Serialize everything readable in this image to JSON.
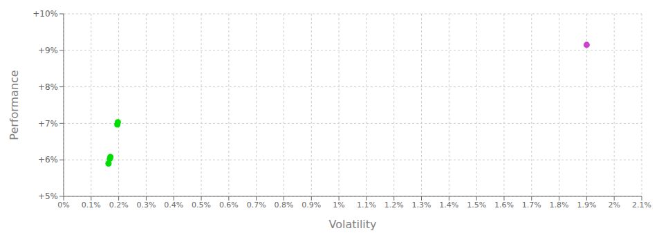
{
  "chart_data": {
    "type": "scatter",
    "xlabel": "Volatility",
    "ylabel": "Performance",
    "xlim": [
      0.0,
      0.021
    ],
    "ylim": [
      0.05,
      0.1
    ],
    "xticks": [
      {
        "value": 0.0,
        "label": "0%"
      },
      {
        "value": 0.001,
        "label": "0.1%"
      },
      {
        "value": 0.002,
        "label": "0.2%"
      },
      {
        "value": 0.003,
        "label": "0.3%"
      },
      {
        "value": 0.004,
        "label": "0.4%"
      },
      {
        "value": 0.005,
        "label": "0.5%"
      },
      {
        "value": 0.006,
        "label": "0.6%"
      },
      {
        "value": 0.007,
        "label": "0.7%"
      },
      {
        "value": 0.008,
        "label": "0.8%"
      },
      {
        "value": 0.009,
        "label": "0.9%"
      },
      {
        "value": 0.01,
        "label": "1%"
      },
      {
        "value": 0.011,
        "label": "1.1%"
      },
      {
        "value": 0.012,
        "label": "1.2%"
      },
      {
        "value": 0.013,
        "label": "1.3%"
      },
      {
        "value": 0.014,
        "label": "1.4%"
      },
      {
        "value": 0.015,
        "label": "1.5%"
      },
      {
        "value": 0.016,
        "label": "1.6%"
      },
      {
        "value": 0.017,
        "label": "1.7%"
      },
      {
        "value": 0.018,
        "label": "1.8%"
      },
      {
        "value": 0.019,
        "label": "1.9%"
      },
      {
        "value": 0.02,
        "label": "2%"
      },
      {
        "value": 0.021,
        "label": "2.1%"
      }
    ],
    "yticks": [
      {
        "value": 0.05,
        "label": "+5%"
      },
      {
        "value": 0.06,
        "label": "+6%"
      },
      {
        "value": 0.07,
        "label": "+7%"
      },
      {
        "value": 0.08,
        "label": "+8%"
      },
      {
        "value": 0.09,
        "label": "+9%"
      },
      {
        "value": 0.1,
        "label": "+10%"
      }
    ],
    "grid": true,
    "series": [
      {
        "color": "#00dd00",
        "x": [
          0.00195,
          0.00197,
          0.00168,
          0.0017,
          0.00163
        ],
        "values": [
          0.0697,
          0.0703,
          0.0603,
          0.0608,
          0.059
        ]
      },
      {
        "color": "#cc44cc",
        "x": [
          0.019
        ],
        "values": [
          0.0915
        ]
      }
    ]
  }
}
